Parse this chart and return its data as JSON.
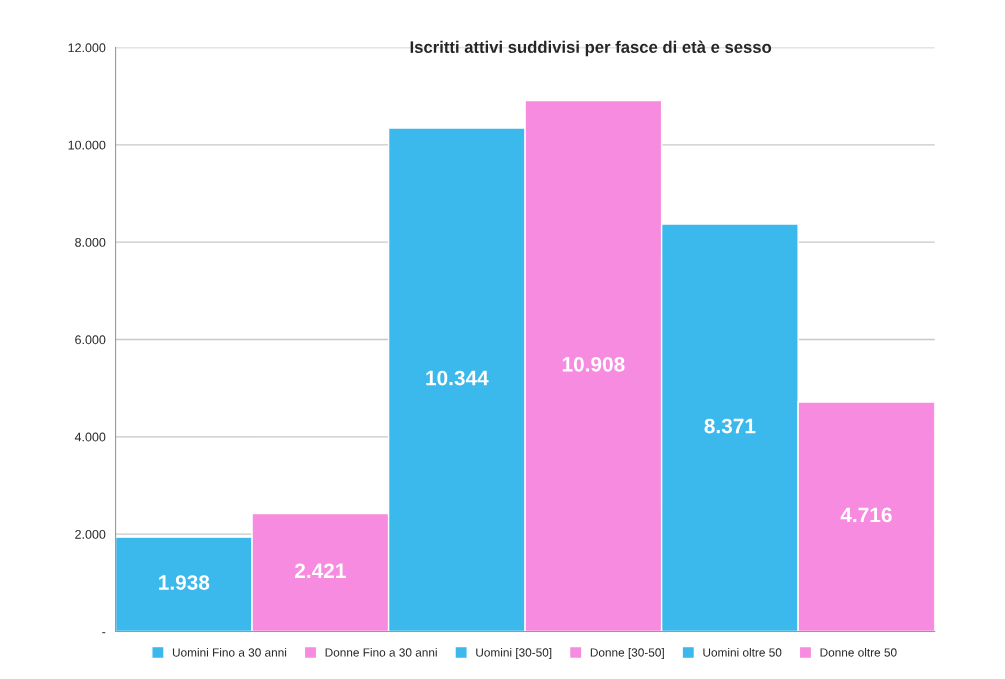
{
  "chart_data": {
    "type": "bar",
    "title": "Iscritti attivi suddivisi per fasce di età e sesso",
    "categories": [
      null,
      null,
      null
    ],
    "series": [
      {
        "name": "Uomini Fino a 30 anni",
        "color": "#3bb8ec",
        "values": [
          1938,
          null,
          null
        ],
        "value_labels": [
          "1.938",
          null,
          null
        ]
      },
      {
        "name": "Donne Fino a 30 anni",
        "color": "#f68be0",
        "values": [
          2421,
          null,
          null
        ],
        "value_labels": [
          "2.421",
          null,
          null
        ]
      },
      {
        "name": "Uomini [30-50]",
        "color": "#3bb8ec",
        "values": [
          null,
          10344,
          null
        ],
        "value_labels": [
          null,
          "10.344",
          null
        ]
      },
      {
        "name": "Donne [30-50]",
        "color": "#f68be0",
        "values": [
          null,
          10908,
          null
        ],
        "value_labels": [
          null,
          "10.908",
          null
        ]
      },
      {
        "name": "Uomini oltre 50",
        "color": "#3bb8ec",
        "values": [
          null,
          null,
          8371
        ],
        "value_labels": [
          null,
          null,
          "8.371"
        ]
      },
      {
        "name": "Donne oltre 50",
        "color": "#f68be0",
        "values": [
          null,
          null,
          4716
        ],
        "value_labels": [
          null,
          null,
          "4.716"
        ]
      }
    ],
    "ylim": [
      0,
      12000
    ],
    "yticks": [
      {
        "value": 0,
        "label": "-"
      },
      {
        "value": 2000,
        "label": "2.000"
      },
      {
        "value": 4000,
        "label": "4.000"
      },
      {
        "value": 6000,
        "label": "6.000"
      },
      {
        "value": 8000,
        "label": "8.000"
      },
      {
        "value": 10000,
        "label": "10.000"
      },
      {
        "value": 12000,
        "label": "12.000"
      }
    ],
    "grid": "y",
    "legend": "bottom"
  }
}
